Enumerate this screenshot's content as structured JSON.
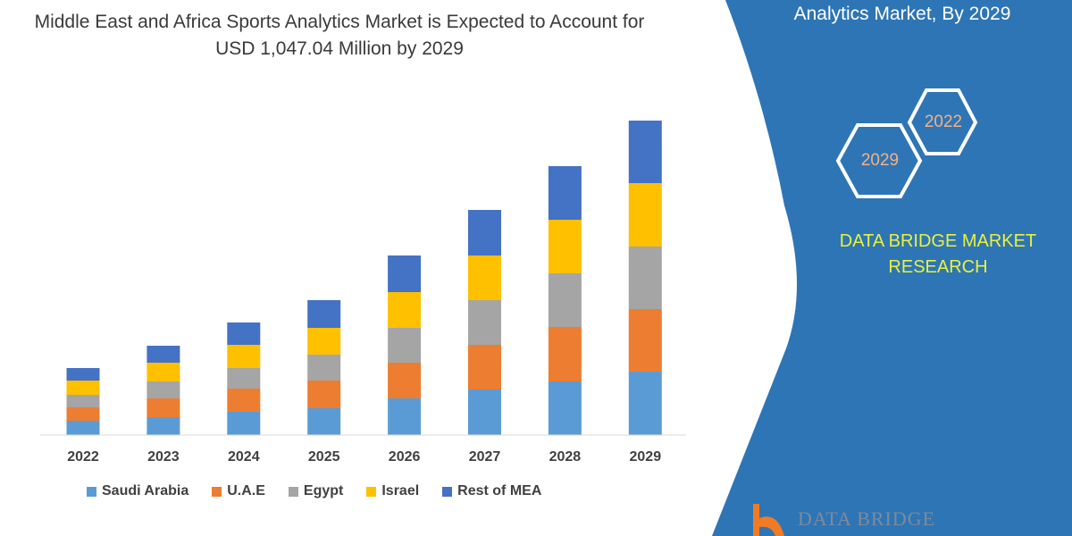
{
  "title": "Middle East and Africa Sports Analytics Market is Expected to Account for USD 1,047.04 Million by 2029",
  "side_panel": {
    "title": "Analytics Market, By 2029",
    "hex_years": [
      "2022",
      "2029"
    ],
    "brand": [
      "DATA BRIDGE MARKET",
      "RESEARCH"
    ],
    "logo_text": "DATA BRIDGE",
    "panel_color": "#2e75b6",
    "brand_color": "#e8f23c"
  },
  "chart_data": {
    "type": "bar",
    "stacked": true,
    "title": "Middle East and Africa Sports Analytics Market is Expected to Account for USD 1,047.04 Million by 2029",
    "xlabel": "",
    "ylabel": "",
    "y_axis_shown": false,
    "value_units": "relative (no axis printed)",
    "ylim": [
      0,
      360
    ],
    "grid": false,
    "legend_position": "bottom",
    "categories": [
      "2022",
      "2023",
      "2024",
      "2025",
      "2026",
      "2027",
      "2028",
      "2029"
    ],
    "series": [
      {
        "name": "Saudi Arabia",
        "color": "#5b9bd5",
        "values": [
          16,
          20,
          26,
          30,
          41,
          51,
          60,
          71
        ]
      },
      {
        "name": "U.A.E",
        "color": "#ed7d31",
        "values": [
          15,
          21,
          26,
          31,
          40,
          50,
          61,
          70
        ]
      },
      {
        "name": "Egypt",
        "color": "#a5a5a5",
        "values": [
          14,
          19,
          23,
          29,
          39,
          50,
          60,
          70
        ]
      },
      {
        "name": "Israel",
        "color": "#ffc000",
        "values": [
          16,
          21,
          26,
          30,
          40,
          50,
          60,
          71
        ]
      },
      {
        "name": "Rest of MEA",
        "color": "#4472c4",
        "values": [
          14,
          19,
          25,
          31,
          41,
          51,
          60,
          70
        ]
      }
    ]
  }
}
